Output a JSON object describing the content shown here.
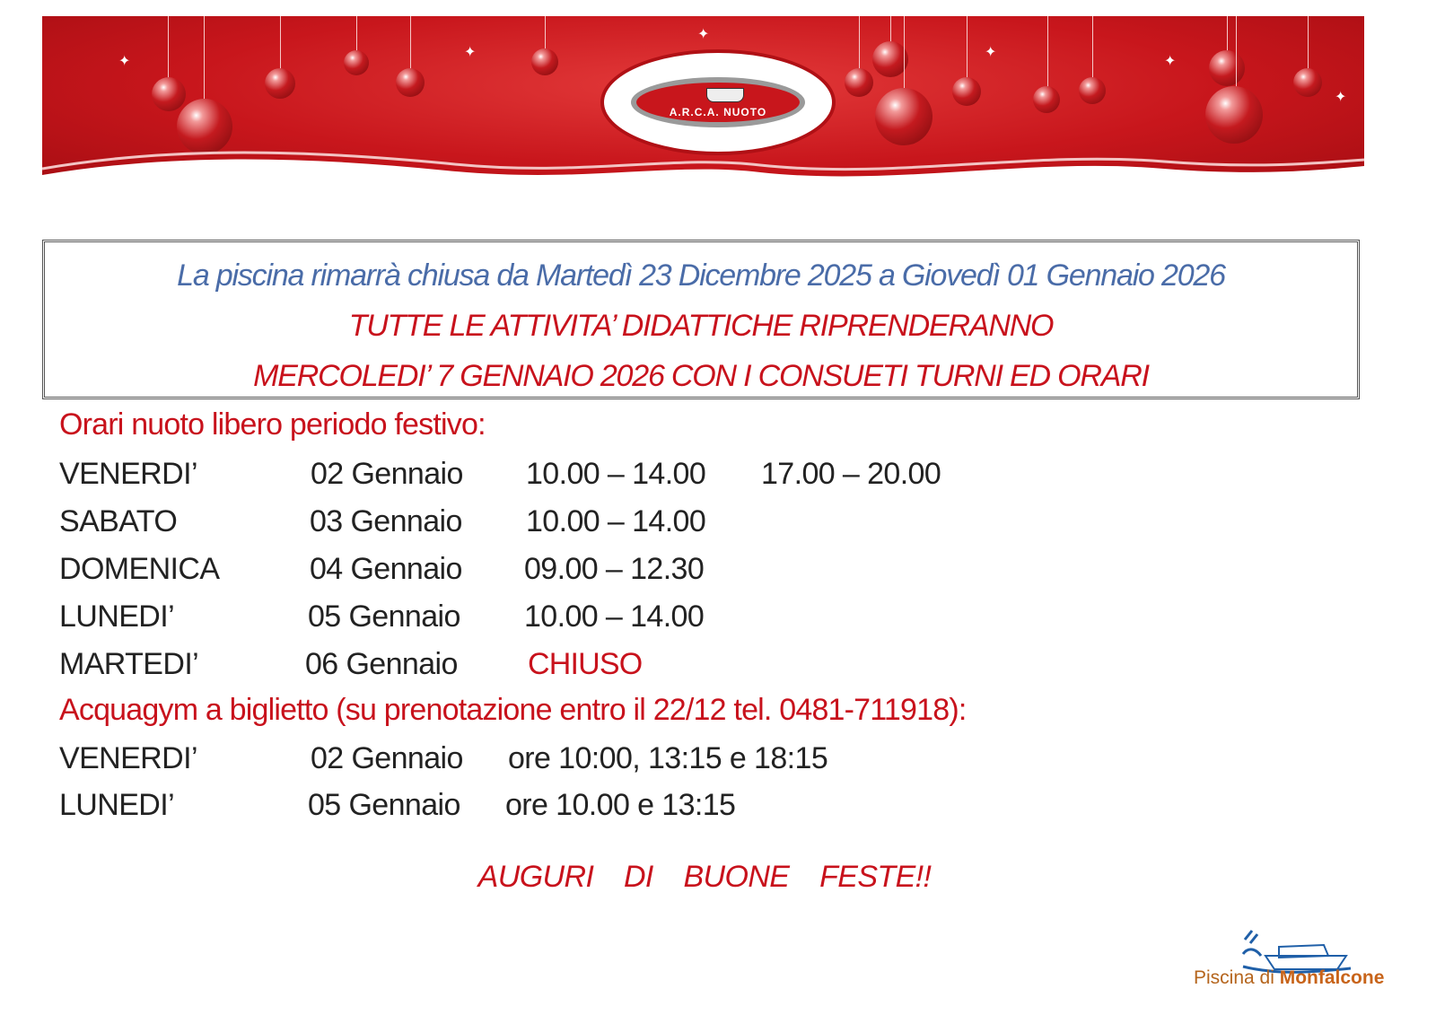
{
  "banner": {
    "logo_text": "A.R.C.A. NUOTO"
  },
  "notice": {
    "line1": "La piscina rimarrà chiusa da Martedì 23 Dicembre 2025 a Giovedì 01 Gennaio 2026",
    "line2": "TUTTE LE ATTIVITA’ DIDATTICHE RIPRENDERANNO",
    "line3": "MERCOLEDI’ 7 GENNAIO 2026 CON I CONSUETI TURNI ED ORARI"
  },
  "free_swim": {
    "heading": "Orari nuoto libero periodo festivo:",
    "rows": [
      {
        "day": "VENERDI’",
        "date": "02 Gennaio",
        "time1": "10.00 – 14.00",
        "time2": "17.00 – 20.00"
      },
      {
        "day": "SABATO",
        "date": "03 Gennaio",
        "time1": "10.00 – 14.00"
      },
      {
        "day": "DOMENICA",
        "date": "04 Gennaio",
        "time1": "09.00 – 12.30"
      },
      {
        "day": "LUNEDI’",
        "date": "05 Gennaio",
        "time1": "10.00 – 14.00"
      },
      {
        "day": "MARTEDI’",
        "date": "06 Gennaio",
        "closed": "CHIUSO"
      }
    ]
  },
  "acquagym": {
    "heading": "Acquagym a biglietto (su prenotazione entro il 22/12 tel. 0481-711918):",
    "rows": [
      {
        "day": "VENERDI’",
        "date": "02 Gennaio",
        "times": "ore 10:00, 13:15 e 18:15"
      },
      {
        "day": "LUNEDI’",
        "date": "05 Gennaio",
        "times": "ore 10.00 e 13:15"
      }
    ]
  },
  "greeting": "AUGURI  DI  BUONE  FESTE!!",
  "footer": {
    "brand_prefix": "Piscina di ",
    "brand_name": "Monfalcone"
  },
  "colors": {
    "red": "#c8121c",
    "blue": "#4a6ca8",
    "banner_red": "#c8161c",
    "footer_blue": "#1f5fa8",
    "footer_orange": "#c8641a"
  }
}
